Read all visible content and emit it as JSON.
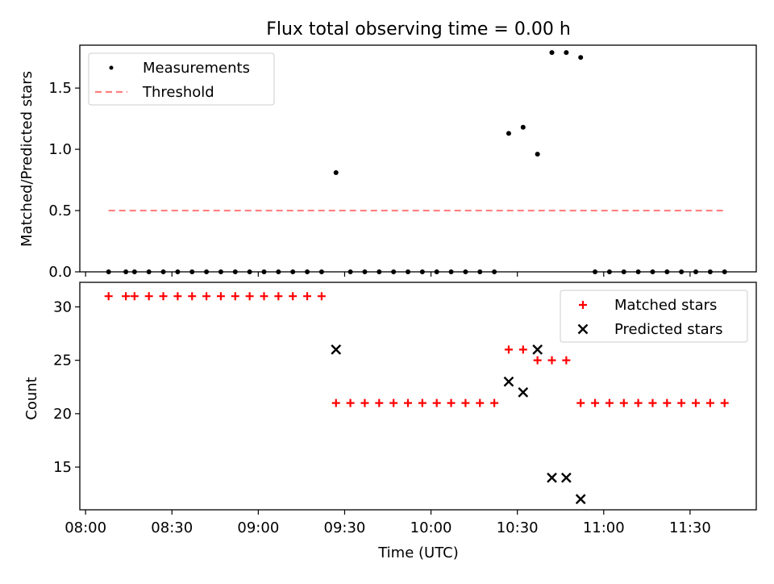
{
  "title": "Flux total observing time = 0.00 h",
  "colors": {
    "measurements": "#000000",
    "threshold": "#ff7f7f",
    "matched": "#ff0000",
    "predicted": "#000000"
  },
  "chart_data": [
    {
      "type": "scatter",
      "panel": "top",
      "title": "Flux total observing time = 0.00 h",
      "xlabel": "",
      "ylabel": "Matched/Predicted stars",
      "xlim": [
        "07:58",
        "11:53"
      ],
      "ylim": [
        0,
        1.85
      ],
      "yticks": [
        "0.0",
        "0.5",
        "1.0",
        "1.5"
      ],
      "legend": "top-left",
      "series": [
        {
          "name": "Measurements",
          "marker": "dot",
          "x": [
            "08:08",
            "08:14",
            "08:17",
            "08:22",
            "08:27",
            "08:32",
            "08:37",
            "08:42",
            "08:47",
            "08:52",
            "08:57",
            "09:02",
            "09:07",
            "09:12",
            "09:17",
            "09:22",
            "09:27",
            "09:32",
            "09:37",
            "09:42",
            "09:47",
            "09:52",
            "09:57",
            "10:02",
            "10:07",
            "10:12",
            "10:17",
            "10:22",
            "10:27",
            "10:32",
            "10:37",
            "10:42",
            "10:47",
            "10:52",
            "10:57",
            "11:02",
            "11:07",
            "11:12",
            "11:17",
            "11:22",
            "11:27",
            "11:32",
            "11:37",
            "11:42"
          ],
          "y": [
            0,
            0,
            0,
            0,
            0,
            0,
            0,
            0,
            0,
            0,
            0,
            0,
            0,
            0,
            0,
            0,
            0.81,
            0,
            0,
            0,
            0,
            0,
            0,
            0,
            0,
            0,
            0,
            0,
            1.13,
            1.18,
            0.96,
            1.79,
            1.79,
            1.75,
            0,
            0,
            0,
            0,
            0,
            0,
            0,
            0,
            0,
            0
          ]
        },
        {
          "name": "Threshold",
          "marker": "dashed-line",
          "x": [
            "08:08",
            "11:42"
          ],
          "y": [
            0.5,
            0.5
          ]
        }
      ]
    },
    {
      "type": "scatter",
      "panel": "bottom",
      "xlabel": "Time (UTC)",
      "ylabel": "Count",
      "xlim": [
        "07:58",
        "11:53"
      ],
      "ylim": [
        11,
        32.3
      ],
      "yticks": [
        "15",
        "20",
        "25",
        "30"
      ],
      "xticks": [
        "08:00",
        "08:30",
        "09:00",
        "09:30",
        "10:00",
        "10:30",
        "11:00",
        "11:30"
      ],
      "legend": "top-right",
      "series": [
        {
          "name": "Matched stars",
          "marker": "plus",
          "x": [
            "08:08",
            "08:14",
            "08:17",
            "08:22",
            "08:27",
            "08:32",
            "08:37",
            "08:42",
            "08:47",
            "08:52",
            "08:57",
            "09:02",
            "09:07",
            "09:12",
            "09:17",
            "09:22",
            "09:27",
            "09:32",
            "09:37",
            "09:42",
            "09:47",
            "09:52",
            "09:57",
            "10:02",
            "10:07",
            "10:12",
            "10:17",
            "10:22",
            "10:27",
            "10:32",
            "10:37",
            "10:42",
            "10:47",
            "10:52",
            "10:57",
            "11:02",
            "11:07",
            "11:12",
            "11:17",
            "11:22",
            "11:27",
            "11:32",
            "11:37",
            "11:42"
          ],
          "y": [
            31,
            31,
            31,
            31,
            31,
            31,
            31,
            31,
            31,
            31,
            31,
            31,
            31,
            31,
            31,
            31,
            21,
            21,
            21,
            21,
            21,
            21,
            21,
            21,
            21,
            21,
            21,
            21,
            26,
            26,
            25,
            25,
            25,
            21,
            21,
            21,
            21,
            21,
            21,
            21,
            21,
            21,
            21,
            21
          ]
        },
        {
          "name": "Predicted stars",
          "marker": "x",
          "x": [
            "09:27",
            "10:27",
            "10:32",
            "10:37",
            "10:42",
            "10:47",
            "10:52"
          ],
          "y": [
            26,
            23,
            22,
            26,
            14,
            14,
            12
          ]
        }
      ]
    }
  ]
}
